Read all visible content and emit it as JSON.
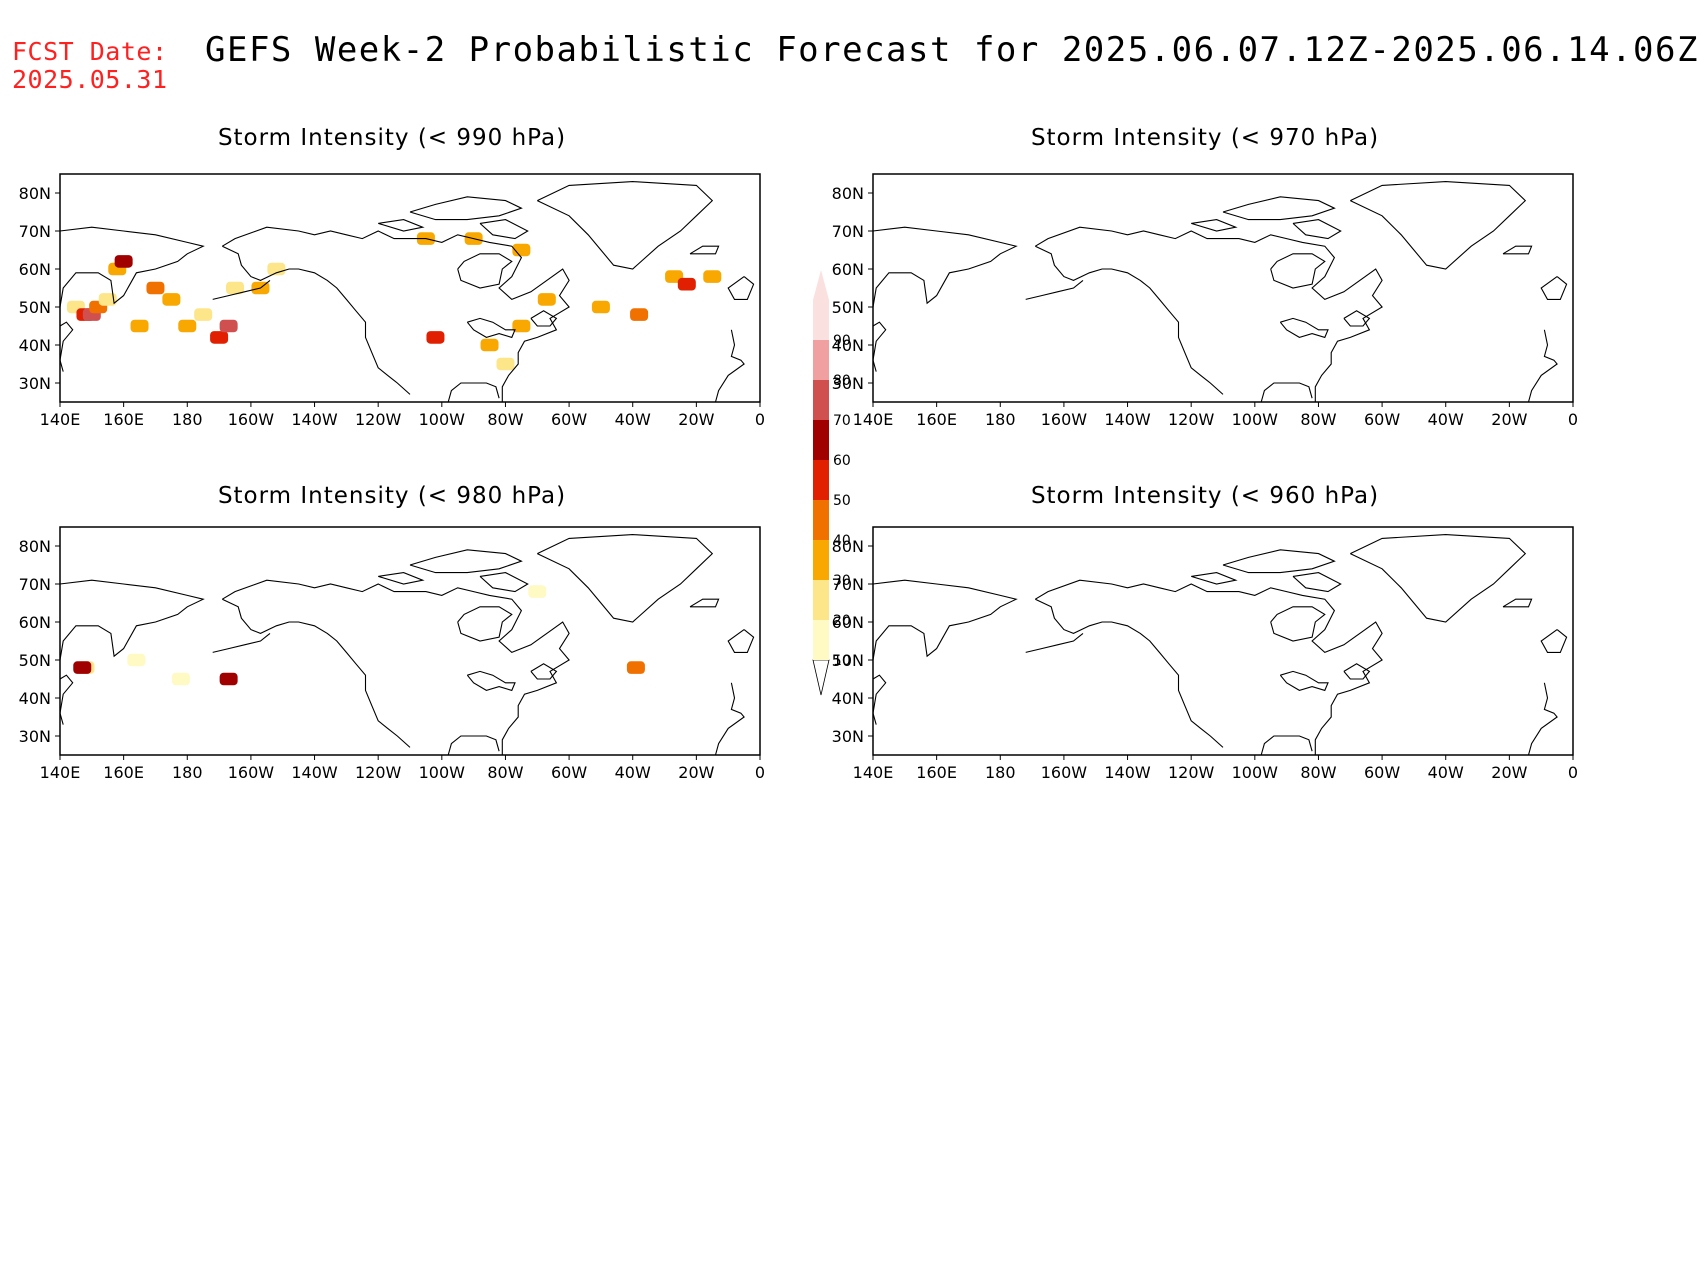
{
  "header": {
    "fcst_label": "FCST Date:",
    "fcst_date": "2025.05.31",
    "title": "GEFS Week-2 Probabilistic Forecast for 2025.06.07.12Z-2025.06.14.06Z"
  },
  "panels": [
    {
      "id": "p990",
      "title": "Storm Intensity (< 990 hPa)"
    },
    {
      "id": "p970",
      "title": "Storm Intensity (< 970 hPa)"
    },
    {
      "id": "p980",
      "title": "Storm Intensity (< 980 hPa)"
    },
    {
      "id": "p960",
      "title": "Storm Intensity (< 960 hPa)"
    }
  ],
  "axes": {
    "x_ticks": [
      "140E",
      "160E",
      "180",
      "160W",
      "140W",
      "120W",
      "100W",
      "80W",
      "60W",
      "40W",
      "20W",
      "0"
    ],
    "y_ticks": [
      "80N",
      "70N",
      "60N",
      "50N",
      "40N",
      "30N"
    ],
    "lon_range": [
      140,
      360
    ],
    "lat_range": [
      25,
      85
    ]
  },
  "colorbar": {
    "levels": [
      10,
      20,
      30,
      40,
      50,
      60,
      70,
      80,
      90
    ],
    "colors": [
      "#fff9c4",
      "#fde68a",
      "#f8a800",
      "#f07000",
      "#e02000",
      "#a00000",
      "#d05050",
      "#f0a0a0",
      "#fbe0e0"
    ]
  },
  "chart_data": {
    "type": "heatmap",
    "units": "probability (%)",
    "panels": [
      {
        "id": "p990",
        "cells": [
          {
            "lon": 145,
            "lat": 50,
            "p": 20
          },
          {
            "lon": 148,
            "lat": 48,
            "p": 50
          },
          {
            "lon": 150,
            "lat": 48,
            "p": 70
          },
          {
            "lon": 152,
            "lat": 50,
            "p": 40
          },
          {
            "lon": 155,
            "lat": 52,
            "p": 20
          },
          {
            "lon": 158,
            "lat": 60,
            "p": 30
          },
          {
            "lon": 160,
            "lat": 62,
            "p": 60
          },
          {
            "lon": 165,
            "lat": 45,
            "p": 30
          },
          {
            "lon": 170,
            "lat": 55,
            "p": 40
          },
          {
            "lon": 175,
            "lat": 52,
            "p": 30
          },
          {
            "lon": 180,
            "lat": 45,
            "p": 30
          },
          {
            "lon": 185,
            "lat": 48,
            "p": 20
          },
          {
            "lon": 190,
            "lat": 42,
            "p": 50
          },
          {
            "lon": 193,
            "lat": 45,
            "p": 70
          },
          {
            "lon": 195,
            "lat": 55,
            "p": 20
          },
          {
            "lon": 203,
            "lat": 55,
            "p": 30
          },
          {
            "lon": 208,
            "lat": 60,
            "p": 20
          },
          {
            "lon": 255,
            "lat": 68,
            "p": 30
          },
          {
            "lon": 258,
            "lat": 42,
            "p": 50
          },
          {
            "lon": 275,
            "lat": 40,
            "p": 30
          },
          {
            "lon": 280,
            "lat": 35,
            "p": 20
          },
          {
            "lon": 285,
            "lat": 45,
            "p": 30
          },
          {
            "lon": 293,
            "lat": 52,
            "p": 30
          },
          {
            "lon": 310,
            "lat": 50,
            "p": 30
          },
          {
            "lon": 322,
            "lat": 48,
            "p": 40
          },
          {
            "lon": 333,
            "lat": 58,
            "p": 30
          },
          {
            "lon": 337,
            "lat": 56,
            "p": 50
          },
          {
            "lon": 345,
            "lat": 58,
            "p": 30
          },
          {
            "lon": 270,
            "lat": 68,
            "p": 30
          },
          {
            "lon": 285,
            "lat": 65,
            "p": 30
          }
        ]
      },
      {
        "id": "p970",
        "cells": []
      },
      {
        "id": "p980",
        "cells": [
          {
            "lon": 148,
            "lat": 48,
            "p": 20
          },
          {
            "lon": 147,
            "lat": 48,
            "p": 60
          },
          {
            "lon": 164,
            "lat": 50,
            "p": 10
          },
          {
            "lon": 178,
            "lat": 45,
            "p": 10
          },
          {
            "lon": 193,
            "lat": 45,
            "p": 60
          },
          {
            "lon": 321,
            "lat": 48,
            "p": 40
          },
          {
            "lon": 290,
            "lat": 68,
            "p": 10
          }
        ]
      },
      {
        "id": "p960",
        "cells": []
      }
    ]
  }
}
